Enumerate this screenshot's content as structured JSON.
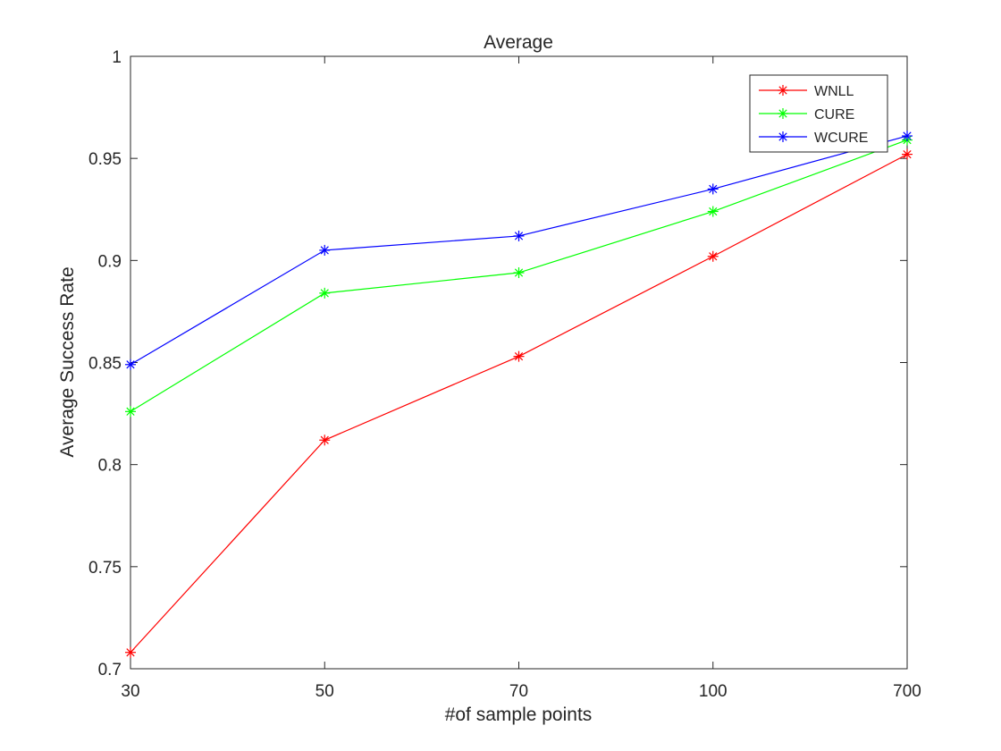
{
  "chart_data": {
    "type": "line",
    "title": "Average",
    "xlabel": "#of sample points",
    "ylabel": "Average Success Rate",
    "categories": [
      "30",
      "50",
      "70",
      "100",
      "700"
    ],
    "ylim": [
      0.7,
      1.0
    ],
    "yticks": [
      "0.7",
      "0.75",
      "0.8",
      "0.85",
      "0.9",
      "0.95",
      "1"
    ],
    "grid": false,
    "legend_position": "top-right",
    "marker": "asterisk",
    "series": [
      {
        "name": "WNLL",
        "color": "#ff0000",
        "values": [
          0.708,
          0.812,
          0.853,
          0.902,
          0.952
        ]
      },
      {
        "name": "CURE",
        "color": "#00ff00",
        "values": [
          0.826,
          0.884,
          0.894,
          0.924,
          0.959
        ]
      },
      {
        "name": "WCURE",
        "color": "#0000ff",
        "values": [
          0.849,
          0.905,
          0.912,
          0.935,
          0.961
        ]
      }
    ]
  }
}
